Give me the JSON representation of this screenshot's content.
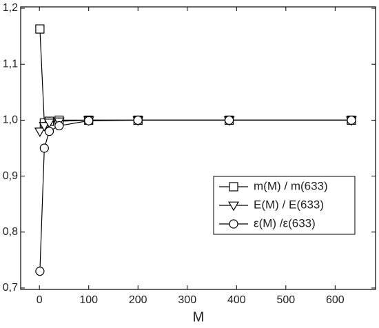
{
  "chart_data": {
    "type": "line",
    "x_label": "M",
    "x": [
      1,
      10,
      20,
      40,
      100,
      200,
      385,
      633
    ],
    "series": [
      {
        "name": "m(M) / m(633)",
        "color": "#000000",
        "marker": "square",
        "values": [
          1.163,
          0.995,
          0.998,
          1.0,
          1.0,
          1.0,
          1.0,
          1.0
        ]
      },
      {
        "name": "E(M) / E(633)",
        "color": "#000000",
        "marker": "triangle-down",
        "values": [
          0.98,
          0.99,
          0.996,
          0.998,
          1.0,
          1.0,
          1.0,
          1.0
        ]
      },
      {
        "name": "ε(M) /ε(633)",
        "color": "#000000",
        "marker": "circle",
        "values": [
          0.73,
          0.95,
          0.98,
          0.99,
          0.999,
          1.0,
          1.0,
          1.0
        ]
      }
    ],
    "xlim": [
      -38,
      682
    ],
    "ylim": [
      0.6975,
      1.2025
    ],
    "xticks": [
      0,
      100,
      200,
      300,
      400,
      500,
      600
    ],
    "yticks": [
      {
        "value": 0.7,
        "label": "0,7"
      },
      {
        "value": 0.8,
        "label": "0,8"
      },
      {
        "value": 0.9,
        "label": "0,9"
      },
      {
        "value": 1.0,
        "label": "1,0"
      },
      {
        "value": 1.1,
        "label": "1,1"
      },
      {
        "value": 1.2,
        "label": "1,2"
      }
    ],
    "legend": "lower-right"
  }
}
